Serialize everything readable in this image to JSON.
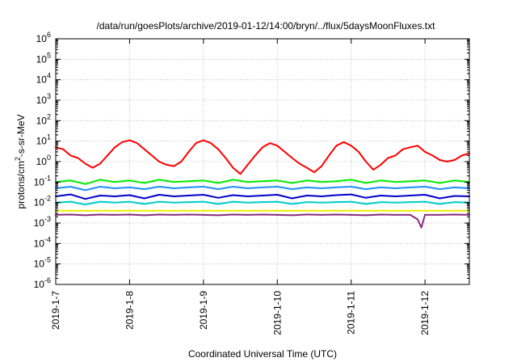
{
  "chart_data": {
    "type": "line",
    "title": "/data/run/goesPlots/archive/2019-01-12/14:00/bryn/../flux/5daysMoonFluxes.txt",
    "xlabel": "Coordinated Universal Time (UTC)",
    "ylabel": "protons/cm2-s-sr-MeV",
    "ylabel_parts": {
      "pre": "protons/cm",
      "sup": "2",
      "post": "-s-sr-MeV"
    },
    "yscale": "log",
    "ylim": [
      1e-06,
      1000000.0
    ],
    "ytick_exponents": [
      -6,
      -5,
      -4,
      -3,
      -2,
      -1,
      0,
      1,
      2,
      3,
      4,
      5,
      6
    ],
    "ytick_base": "10",
    "xlim_days": [
      0,
      5.6
    ],
    "xticks": [
      {
        "label": "2019-1-7",
        "day": 0
      },
      {
        "label": "2019-1-8",
        "day": 1
      },
      {
        "label": "2019-1-9",
        "day": 2
      },
      {
        "label": "2019-1-10",
        "day": 3
      },
      {
        "label": "2019-1-11",
        "day": 4
      },
      {
        "label": "2019-1-12",
        "day": 5
      }
    ],
    "grid": true,
    "series": [
      {
        "color": "#ff0000",
        "x": [
          0,
          0.1,
          0.2,
          0.3,
          0.4,
          0.5,
          0.6,
          0.7,
          0.8,
          0.9,
          1.0,
          1.1,
          1.2,
          1.3,
          1.4,
          1.5,
          1.6,
          1.7,
          1.8,
          1.9,
          2.0,
          2.1,
          2.2,
          2.3,
          2.4,
          2.5,
          2.6,
          2.7,
          2.8,
          2.9,
          3.0,
          3.1,
          3.2,
          3.3,
          3.4,
          3.5,
          3.6,
          3.7,
          3.8,
          3.9,
          4.0,
          4.1,
          4.2,
          4.3,
          4.4,
          4.5,
          4.6,
          4.7,
          4.8,
          4.9,
          5.0,
          5.1,
          5.2,
          5.3,
          5.4,
          5.5,
          5.6
        ],
        "y": [
          5,
          4,
          2,
          1.5,
          0.8,
          0.5,
          0.8,
          2,
          5,
          9,
          11,
          8,
          4,
          2,
          1,
          0.7,
          0.6,
          1,
          3,
          8,
          11,
          8,
          4,
          1.5,
          0.5,
          0.25,
          0.7,
          2,
          5,
          8,
          6,
          3,
          1.5,
          0.8,
          0.5,
          0.3,
          0.6,
          2,
          6,
          9,
          6,
          3,
          1,
          0.4,
          0.7,
          1.5,
          2,
          4,
          5,
          6,
          3,
          2,
          1.2,
          1,
          1.2,
          2,
          2.5
        ]
      },
      {
        "color": "#00ee00",
        "x": [
          0,
          0.2,
          0.4,
          0.6,
          0.8,
          1.0,
          1.2,
          1.4,
          1.6,
          1.8,
          2.0,
          2.2,
          2.4,
          2.6,
          2.8,
          3.0,
          3.2,
          3.4,
          3.6,
          3.8,
          4.0,
          4.2,
          4.4,
          4.6,
          4.8,
          5.0,
          5.2,
          5.4,
          5.6
        ],
        "y": [
          0.1,
          0.12,
          0.08,
          0.13,
          0.1,
          0.12,
          0.09,
          0.13,
          0.1,
          0.11,
          0.12,
          0.09,
          0.13,
          0.1,
          0.11,
          0.12,
          0.09,
          0.12,
          0.1,
          0.11,
          0.13,
          0.09,
          0.12,
          0.1,
          0.11,
          0.12,
          0.09,
          0.12,
          0.1
        ]
      },
      {
        "color": "#1e90ff",
        "x": [
          0,
          0.2,
          0.4,
          0.6,
          0.8,
          1.0,
          1.2,
          1.4,
          1.6,
          1.8,
          2.0,
          2.2,
          2.4,
          2.6,
          2.8,
          3.0,
          3.2,
          3.4,
          3.6,
          3.8,
          4.0,
          4.2,
          4.4,
          4.6,
          4.8,
          5.0,
          5.2,
          5.4,
          5.6
        ],
        "y": [
          0.05,
          0.06,
          0.04,
          0.06,
          0.05,
          0.055,
          0.045,
          0.06,
          0.05,
          0.055,
          0.06,
          0.045,
          0.06,
          0.05,
          0.055,
          0.06,
          0.045,
          0.055,
          0.05,
          0.055,
          0.06,
          0.045,
          0.055,
          0.05,
          0.055,
          0.06,
          0.045,
          0.055,
          0.05
        ]
      },
      {
        "color": "#0000cc",
        "x": [
          0,
          0.2,
          0.4,
          0.6,
          0.8,
          1.0,
          1.2,
          1.4,
          1.6,
          1.8,
          2.0,
          2.2,
          2.4,
          2.6,
          2.8,
          3.0,
          3.2,
          3.4,
          3.6,
          3.8,
          4.0,
          4.2,
          4.4,
          4.6,
          4.8,
          5.0,
          5.2,
          5.4,
          5.6
        ],
        "y": [
          0.02,
          0.025,
          0.015,
          0.022,
          0.02,
          0.023,
          0.016,
          0.024,
          0.02,
          0.022,
          0.024,
          0.017,
          0.023,
          0.02,
          0.022,
          0.024,
          0.016,
          0.022,
          0.02,
          0.023,
          0.025,
          0.017,
          0.022,
          0.02,
          0.022,
          0.024,
          0.016,
          0.021,
          0.02
        ]
      },
      {
        "color": "#00cccc",
        "x": [
          0,
          0.2,
          0.4,
          0.6,
          0.8,
          1.0,
          1.2,
          1.4,
          1.6,
          1.8,
          2.0,
          2.2,
          2.4,
          2.6,
          2.8,
          3.0,
          3.2,
          3.4,
          3.6,
          3.8,
          4.0,
          4.2,
          4.4,
          4.6,
          4.8,
          5.0,
          5.2,
          5.4,
          5.6
        ],
        "y": [
          0.01,
          0.011,
          0.008,
          0.011,
          0.01,
          0.011,
          0.0085,
          0.011,
          0.01,
          0.0105,
          0.011,
          0.0085,
          0.011,
          0.01,
          0.0105,
          0.011,
          0.0085,
          0.0105,
          0.01,
          0.0105,
          0.011,
          0.0085,
          0.0105,
          0.01,
          0.0105,
          0.011,
          0.0085,
          0.0105,
          0.01
        ]
      },
      {
        "color": "#eeee00",
        "x": [
          0,
          5.6
        ],
        "y": [
          0.004,
          0.004
        ]
      },
      {
        "color": "#8b2a7a",
        "x": [
          0,
          0.2,
          0.4,
          0.6,
          0.8,
          1.0,
          1.2,
          1.4,
          1.6,
          1.8,
          2.0,
          2.2,
          2.4,
          2.6,
          2.8,
          3.0,
          3.2,
          3.4,
          3.6,
          3.8,
          4.0,
          4.2,
          4.4,
          4.6,
          4.8,
          4.9,
          4.95,
          5.0,
          5.2,
          5.4,
          5.6
        ],
        "y": [
          0.0025,
          0.0026,
          0.0024,
          0.0026,
          0.0025,
          0.0026,
          0.0024,
          0.0026,
          0.0025,
          0.0026,
          0.0025,
          0.0024,
          0.0026,
          0.0025,
          0.0026,
          0.0025,
          0.0024,
          0.0026,
          0.0025,
          0.0026,
          0.0025,
          0.0024,
          0.0026,
          0.0025,
          0.0025,
          0.0015,
          0.0006,
          0.0025,
          0.0025,
          0.0026,
          0.0025
        ]
      }
    ]
  }
}
